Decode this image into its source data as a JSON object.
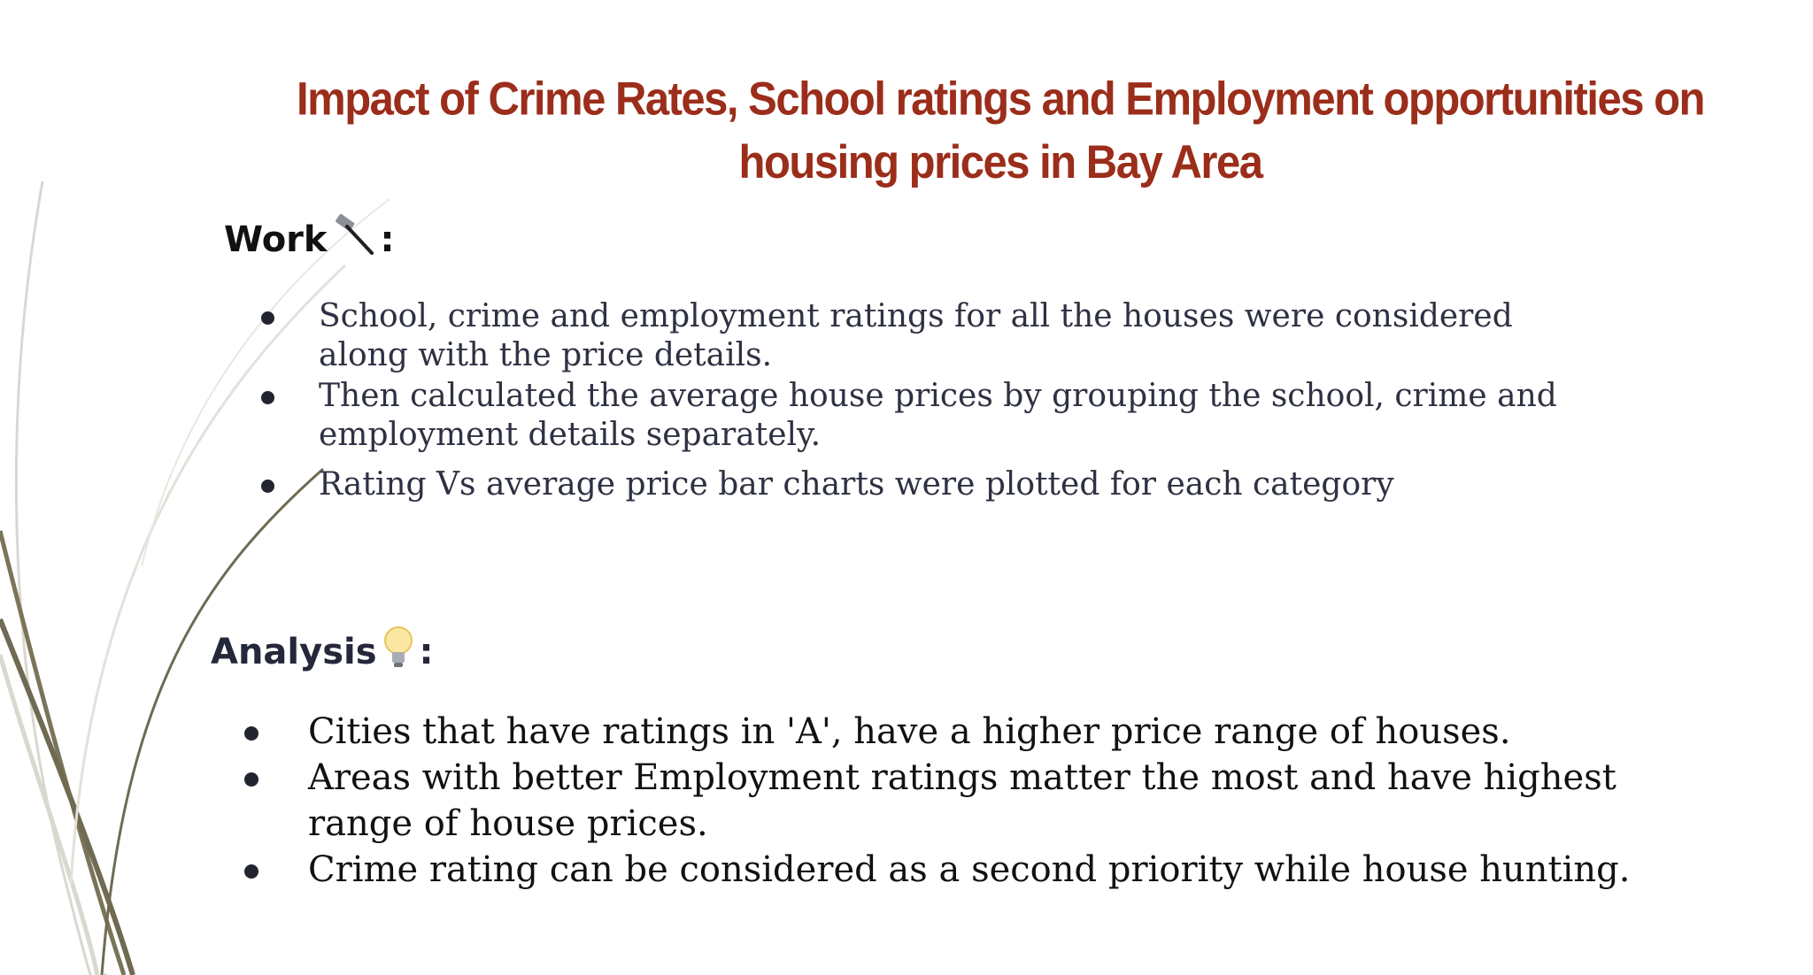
{
  "slide": {
    "title": "Impact of Crime Rates, School ratings and Employment opportunities on housing prices in Bay Area",
    "work": {
      "heading": "Work",
      "icon": "hammer-icon",
      "colon": ":",
      "items": [
        "School, crime and employment ratings for all the houses were considered along with the price details.",
        "Then calculated the average house prices by grouping the school, crime and employment details separately.",
        "Rating Vs average price bar charts were plotted for each category"
      ]
    },
    "analysis": {
      "heading": "Analysis",
      "icon": "lightbulb-icon",
      "colon": ":",
      "items": [
        "Cities that have ratings in 'A', have a higher price range of houses.",
        "Areas with better Employment ratings matter the most and have highest range of house prices.",
        "Crime rating can be considered as a second priority while house hunting."
      ]
    },
    "colors": {
      "title": "#9b2d1b",
      "decor_dark": "#6f6a52",
      "decor_light": "#d9d8d0"
    }
  }
}
